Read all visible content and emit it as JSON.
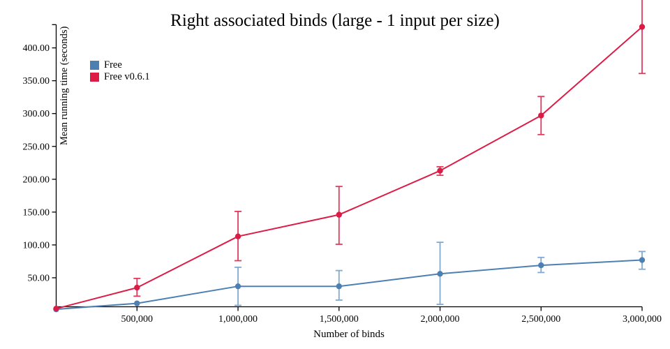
{
  "title": "Right associated binds (large - 1 input per size)",
  "colors": {
    "background": "#ffffff",
    "axis": "#000000",
    "free_blue": "#4d80b2",
    "free_blue_error": "#82a9cf",
    "free_v061_red": "#dc1c45",
    "free_v061_red_error": "#e23a5e"
  },
  "chart_data": {
    "type": "line",
    "title": "Right associated binds (large - 1 input per size)",
    "xlabel": "Number of binds",
    "ylabel": "Mean running time (seconds)",
    "xlim": [
      100000,
      3000000
    ],
    "ylim": [
      0,
      435
    ],
    "grid": false,
    "legend_position": "upper-left-inside",
    "x_ticks": [
      {
        "v": 500000,
        "label": "500,000"
      },
      {
        "v": 1000000,
        "label": "1,000,000"
      },
      {
        "v": 1500000,
        "label": "1,500,000"
      },
      {
        "v": 2000000,
        "label": "2,000,000"
      },
      {
        "v": 2500000,
        "label": "2,500,000"
      },
      {
        "v": 3000000,
        "label": "3,000,000"
      }
    ],
    "y_ticks": [
      {
        "v": 50,
        "label": "50.00"
      },
      {
        "v": 100,
        "label": "100.00"
      },
      {
        "v": 150,
        "label": "150.00"
      },
      {
        "v": 200,
        "label": "200.00"
      },
      {
        "v": 250,
        "label": "250.00"
      },
      {
        "v": 300,
        "label": "300.00"
      },
      {
        "v": 350,
        "label": "350.00"
      },
      {
        "v": 400,
        "label": "400.00"
      }
    ],
    "series": [
      {
        "name": "Free",
        "color": "#4d80b2",
        "error_color": "#82a9cf",
        "x": [
          100000,
          500000,
          1000000,
          1500000,
          2000000,
          2500000,
          3000000
        ],
        "y": [
          2,
          11,
          37,
          37,
          56,
          69,
          77
        ],
        "err_lo": [
          null,
          null,
          8,
          16,
          9.5,
          58,
          63
        ],
        "err_hi": [
          null,
          null,
          66,
          61,
          104,
          81,
          90
        ]
      },
      {
        "name": "Free v0.6.1",
        "color": "#dc1c45",
        "error_color": "#e23a5e",
        "x": [
          100000,
          500000,
          1000000,
          1500000,
          2000000,
          2500000,
          3000000
        ],
        "y": [
          3,
          35,
          113,
          146,
          213,
          297,
          432
        ],
        "err_lo": [
          null,
          22,
          76,
          101,
          206,
          268,
          361
        ],
        "err_hi": [
          null,
          49,
          151,
          189,
          219,
          326,
          505
        ]
      }
    ]
  }
}
